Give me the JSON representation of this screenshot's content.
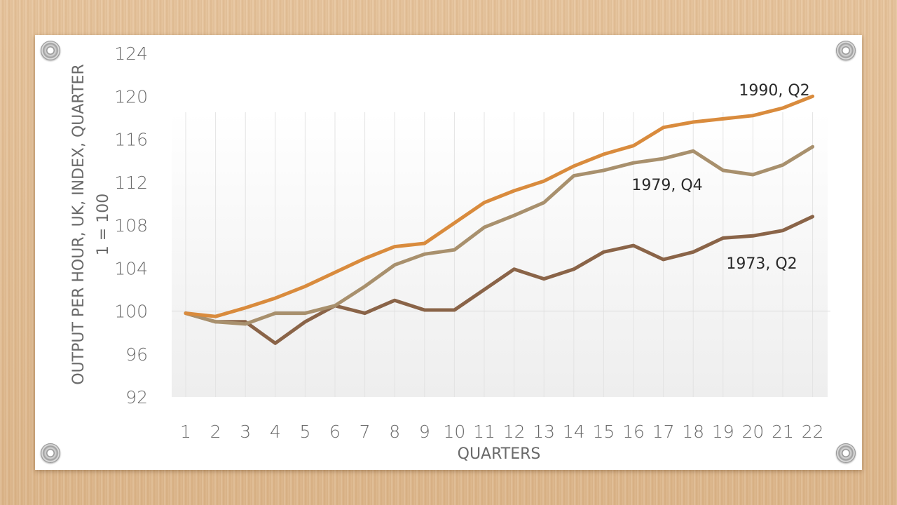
{
  "chart_data": {
    "type": "line",
    "x": [
      1,
      2,
      3,
      4,
      5,
      6,
      7,
      8,
      9,
      10,
      11,
      12,
      13,
      14,
      15,
      16,
      17,
      18,
      19,
      20,
      21,
      22
    ],
    "ylim": [
      92,
      124
    ],
    "yticks": [
      92,
      96,
      100,
      104,
      108,
      112,
      116,
      120,
      124
    ],
    "xlabel": "QUARTERS",
    "ylabel": "OUTPUT PER HOUR, UK, INDEX, QUARTER",
    "ylabel2": "1 = 100",
    "grid": "vertical",
    "baseline": 100,
    "series": [
      {
        "name": "1990, Q2",
        "color": "#d98b3d",
        "values": [
          99.8,
          99.5,
          100.3,
          101.2,
          102.3,
          103.6,
          104.9,
          106.0,
          106.3,
          108.2,
          110.1,
          111.2,
          112.1,
          113.5,
          114.6,
          115.4,
          117.1,
          117.6,
          117.9,
          118.2,
          118.9,
          120.0
        ]
      },
      {
        "name": "1979, Q4",
        "color": "#a8906d",
        "values": [
          99.8,
          99.0,
          98.8,
          99.8,
          99.8,
          100.5,
          102.3,
          104.3,
          105.3,
          105.7,
          107.8,
          108.9,
          110.1,
          112.6,
          113.1,
          113.8,
          114.2,
          114.9,
          113.1,
          112.7,
          113.6,
          115.3
        ]
      },
      {
        "name": "1973, Q2",
        "color": "#8a6448",
        "values": [
          99.8,
          99.0,
          99.0,
          97.0,
          99.0,
          100.5,
          99.8,
          101.0,
          100.1,
          100.1,
          102.0,
          103.9,
          103.0,
          103.9,
          105.5,
          106.1,
          104.8,
          105.5,
          106.8,
          107.0,
          107.5,
          108.8
        ]
      }
    ]
  }
}
